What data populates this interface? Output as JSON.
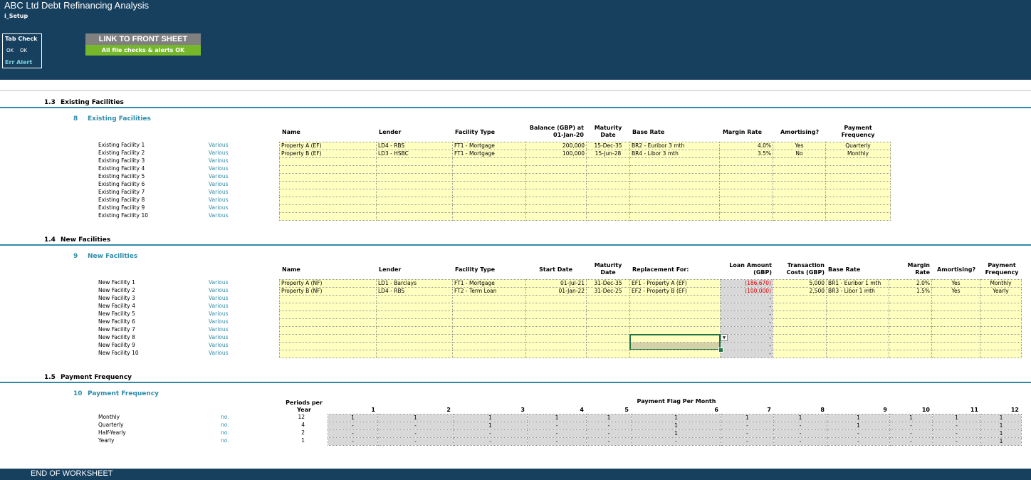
{
  "header": {
    "title": "ABC Ltd Debt Refinancing Analysis",
    "sheet": "i_Setup"
  },
  "tab_check": {
    "title": "Tab Check",
    "ok1": "OK",
    "ok2": "OK",
    "err_alert": "Err Alert"
  },
  "link_button": "LINK TO FRONT SHEET",
  "checks_status": "All file checks & alerts OK",
  "colors": {
    "banner": "#17405f",
    "accent": "#2f8ca8",
    "input": "#ffffc0",
    "ok_green": "#76b82a",
    "negative": "#e00000"
  },
  "existing": {
    "section_no": "1.3",
    "section_title": "Existing Facilities",
    "sub_no": "8",
    "sub_title": "Existing Facilities",
    "headers": {
      "name": "Name",
      "lender": "Lender",
      "type": "Facility Type",
      "balance": [
        "Balance (GBP) at",
        "01-Jan-20"
      ],
      "maturity": [
        "Maturity",
        "Date"
      ],
      "base": "Base Rate",
      "margin": "Margin Rate",
      "amort": "Amortising?",
      "freq": [
        "Payment",
        "Frequency"
      ]
    },
    "unit": "Various",
    "row_labels": [
      "Existing Facility 1",
      "Existing Facility 2",
      "Existing Facility 3",
      "Existing Facility 4",
      "Existing Facility 5",
      "Existing Facility 6",
      "Existing Facility 7",
      "Existing Facility 8",
      "Existing Facility 9",
      "Existing Facility 10"
    ],
    "rows": [
      [
        "Property A (EF)",
        "LD4 - RBS",
        "FT1 - Mortgage",
        "200,000",
        "15-Dec-35",
        "BR2 - Euribor 3 mth",
        "4.0%",
        "Yes",
        "Quarterly"
      ],
      [
        "Property B (EF)",
        "LD3 - HSBC",
        "FT1 - Mortgage",
        "100,000",
        "15-Jun-28",
        "BR4 - Libor 3 mth",
        "3.5%",
        "No",
        "Monthly"
      ]
    ]
  },
  "new": {
    "section_no": "1.4",
    "section_title": "New Facilities",
    "sub_no": "9",
    "sub_title": "New Facilities",
    "headers": {
      "name": "Name",
      "lender": "Lender",
      "type": "Facility Type",
      "start": "Start Date",
      "maturity": [
        "Maturity",
        "Date"
      ],
      "replace": "Replacement For:",
      "loan": [
        "Loan Amount",
        "(GBP)"
      ],
      "tc": [
        "Transaction",
        "Costs (GBP)"
      ],
      "base": "Base Rate",
      "margin": [
        "Margin",
        "Rate"
      ],
      "amort": "Amortising?",
      "freq": [
        "Payment",
        "Frequency"
      ]
    },
    "unit": "Various",
    "row_labels": [
      "New Facility 1",
      "New Facility 2",
      "New Facility 3",
      "New Facility 4",
      "New Facility 5",
      "New Facility 6",
      "New Facility 7",
      "New Facility 8",
      "New Facility 9",
      "New Facility 10"
    ],
    "rows": [
      [
        "Property A (NF)",
        "LD1 - Barclays",
        "FT1 - Mortgage",
        "01-Jul-21",
        "31-Dec-35",
        "EF1 - Property A (EF)",
        "(186,670)",
        "5,000",
        "BR1 - Euribor 1 mth",
        "2.0%",
        "Yes",
        "Monthly"
      ],
      [
        "Property B (NF)",
        "LD4 - RBS",
        "FT2 - Term Loan",
        "01-Jan-22",
        "31-Dec-25",
        "EF2 - Property B (EF)",
        "(100,000)",
        "2,500",
        "BR3 - Libor 1 mth",
        "1.5%",
        "Yes",
        "Yearly"
      ]
    ],
    "empty_loan": "-"
  },
  "freq": {
    "section_no": "1.5",
    "section_title": "Payment Frequency",
    "sub_no": "10",
    "sub_title": "Payment Frequency",
    "periods_header": [
      "Periods per",
      "Year"
    ],
    "flag_header": "Payment Flag Per Month",
    "months": [
      "1",
      "2",
      "3",
      "4",
      "5",
      "6",
      "7",
      "8",
      "9",
      "10",
      "11",
      "12"
    ],
    "unit": "no.",
    "rows": [
      {
        "label": "Monthly",
        "periods": "12",
        "flags": [
          "1",
          "1",
          "1",
          "1",
          "1",
          "1",
          "1",
          "1",
          "1",
          "1",
          "1",
          "1"
        ]
      },
      {
        "label": "Quarterly",
        "periods": "4",
        "flags": [
          "-",
          "-",
          "1",
          "-",
          "-",
          "1",
          "-",
          "-",
          "1",
          "-",
          "-",
          "1"
        ]
      },
      {
        "label": "Half-Yearly",
        "periods": "2",
        "flags": [
          "-",
          "-",
          "-",
          "-",
          "-",
          "1",
          "-",
          "-",
          "-",
          "-",
          "-",
          "1"
        ]
      },
      {
        "label": "Yearly",
        "periods": "1",
        "flags": [
          "-",
          "-",
          "-",
          "-",
          "-",
          "-",
          "-",
          "-",
          "-",
          "-",
          "-",
          "1"
        ]
      }
    ]
  },
  "footer": "END OF WORKSHEET"
}
